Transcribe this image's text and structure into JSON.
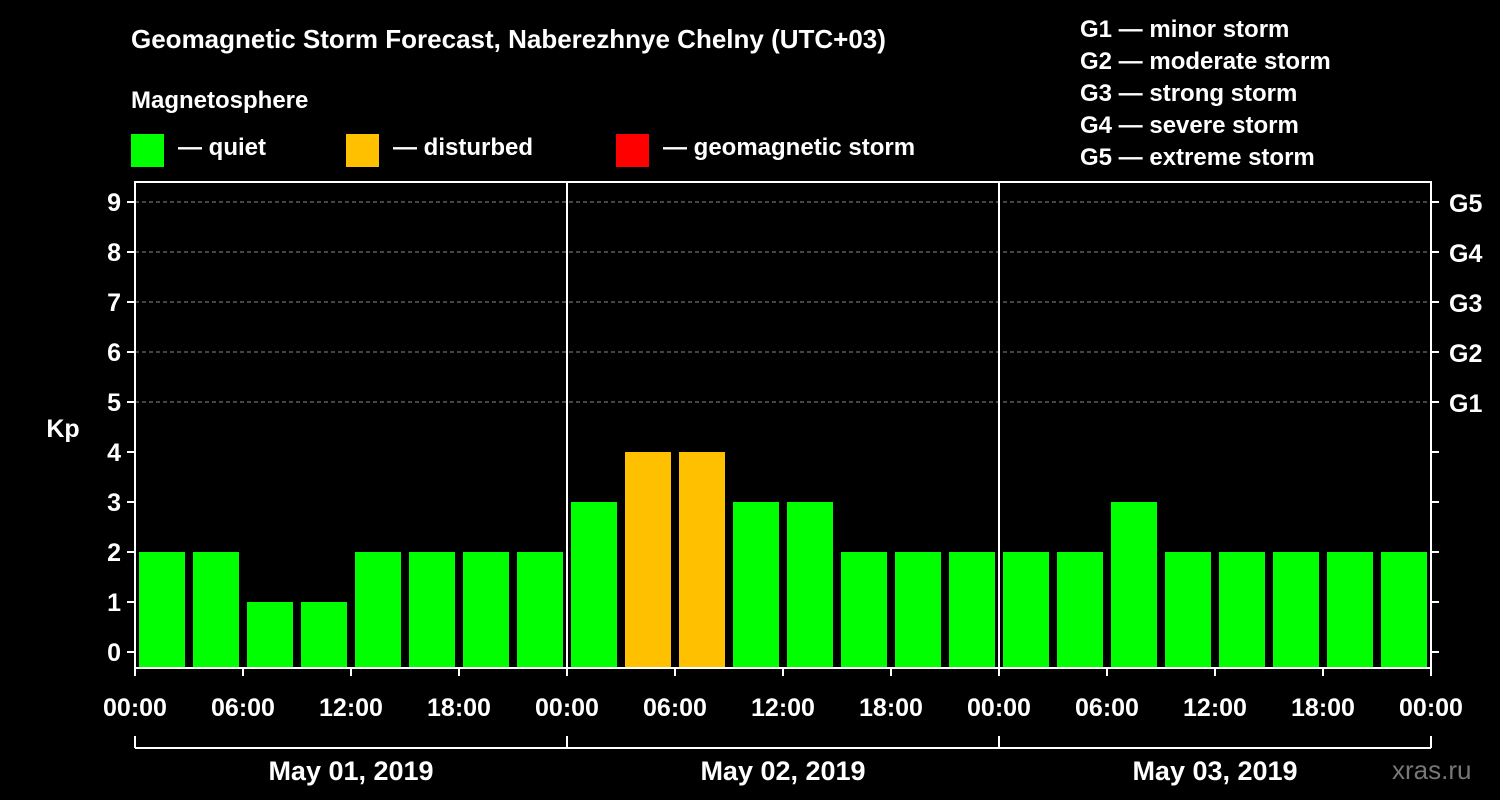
{
  "title": "Geomagnetic Storm Forecast, Naberezhnye Chelny (UTC+03)",
  "legend": {
    "heading": "Magnetosphere",
    "items": [
      {
        "label": "— quiet",
        "color": "#00ff00"
      },
      {
        "label": "— disturbed",
        "color": "#ffc000"
      },
      {
        "label": "— geomagnetic storm",
        "color": "#ff0000"
      }
    ]
  },
  "storm_scale": [
    "G1 — minor storm",
    "G2 — moderate storm",
    "G3 — strong storm",
    "G4 — severe storm",
    "G5 — extreme storm"
  ],
  "watermark": "xras.ru",
  "chart_data": {
    "type": "bar",
    "ylabel": "Kp",
    "ylim": [
      0,
      9
    ],
    "yticks": [
      0,
      1,
      2,
      3,
      4,
      5,
      6,
      7,
      8,
      9
    ],
    "right_ticks": [
      {
        "value": 5,
        "label": "G1"
      },
      {
        "value": 6,
        "label": "G2"
      },
      {
        "value": 7,
        "label": "G3"
      },
      {
        "value": 8,
        "label": "G4"
      },
      {
        "value": 9,
        "label": "G5"
      }
    ],
    "grid": "dashed at Kp 5-9",
    "xtick_labels": [
      "00:00",
      "06:00",
      "12:00",
      "18:00",
      "00:00",
      "06:00",
      "12:00",
      "18:00",
      "00:00",
      "06:00",
      "12:00",
      "18:00",
      "00:00"
    ],
    "days": [
      "May 01, 2019",
      "May 02, 2019",
      "May 03, 2019"
    ],
    "interval_hours": 3,
    "values": [
      2,
      2,
      1,
      1,
      2,
      2,
      2,
      2,
      3,
      4,
      4,
      3,
      3,
      2,
      2,
      2,
      2,
      2,
      3,
      2,
      2,
      2,
      2,
      2
    ],
    "colors": [
      "#00ff00",
      "#00ff00",
      "#00ff00",
      "#00ff00",
      "#00ff00",
      "#00ff00",
      "#00ff00",
      "#00ff00",
      "#00ff00",
      "#ffc000",
      "#ffc000",
      "#00ff00",
      "#00ff00",
      "#00ff00",
      "#00ff00",
      "#00ff00",
      "#00ff00",
      "#00ff00",
      "#00ff00",
      "#00ff00",
      "#00ff00",
      "#00ff00",
      "#00ff00",
      "#00ff00"
    ]
  }
}
